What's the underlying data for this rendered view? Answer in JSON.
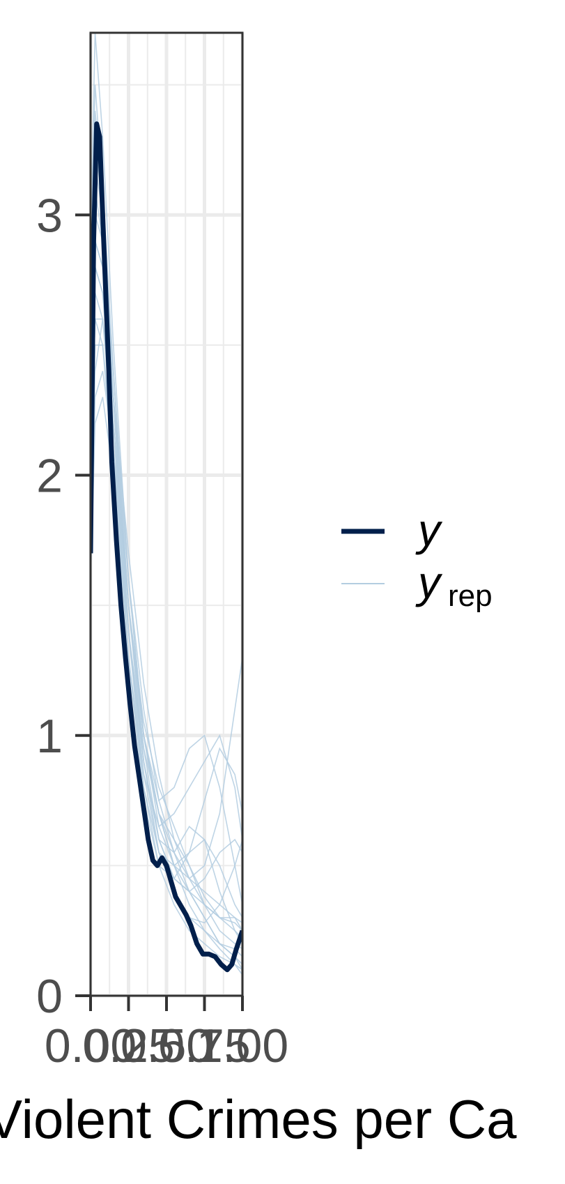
{
  "chart_data": {
    "type": "line",
    "title": "",
    "xlabel": "Violent Crimes per Ca",
    "ylabel": "",
    "xlim": [
      0,
      1
    ],
    "ylim": [
      0,
      3.7
    ],
    "x_ticks": [
      "0.00",
      "0.25",
      "0.50",
      "0.75",
      "1.00"
    ],
    "y_ticks": [
      "0",
      "1",
      "2",
      "3"
    ],
    "grid": true,
    "legend_position": "right",
    "legend": [
      {
        "label": "y",
        "subscript": "",
        "color": "#011f4b"
      },
      {
        "label": "y",
        "subscript": "rep",
        "color": "#b3cde0"
      }
    ],
    "series": [
      {
        "name": "y",
        "color": "#011f4b",
        "x": [
          0.0,
          0.02,
          0.04,
          0.06,
          0.08,
          0.1,
          0.12,
          0.14,
          0.17,
          0.2,
          0.23,
          0.26,
          0.29,
          0.32,
          0.35,
          0.38,
          0.41,
          0.44,
          0.47,
          0.5,
          0.53,
          0.56,
          0.6,
          0.63,
          0.66,
          0.7,
          0.74,
          0.78,
          0.82,
          0.86,
          0.9,
          0.93,
          0.96,
          1.0
        ],
        "y": [
          1.7,
          2.9,
          3.35,
          3.3,
          3.0,
          2.7,
          2.4,
          2.05,
          1.75,
          1.5,
          1.3,
          1.12,
          0.96,
          0.84,
          0.72,
          0.6,
          0.52,
          0.5,
          0.53,
          0.5,
          0.44,
          0.38,
          0.34,
          0.31,
          0.27,
          0.2,
          0.16,
          0.16,
          0.15,
          0.12,
          0.1,
          0.12,
          0.18,
          0.25
        ]
      }
    ],
    "replicates": [
      {
        "x": [
          0,
          0.03,
          0.08,
          0.15,
          0.25,
          0.35,
          0.45,
          0.55,
          0.65,
          0.75,
          0.85,
          0.95,
          1.0
        ],
        "y": [
          2.9,
          3.7,
          3.3,
          2.5,
          1.6,
          1.0,
          0.7,
          0.5,
          0.4,
          0.3,
          0.2,
          0.15,
          0.12
        ]
      },
      {
        "x": [
          0,
          0.03,
          0.08,
          0.15,
          0.25,
          0.35,
          0.45,
          0.55,
          0.65,
          0.75,
          0.85,
          0.95,
          1.0
        ],
        "y": [
          2.5,
          3.2,
          3.0,
          2.3,
          1.4,
          0.9,
          0.6,
          0.55,
          0.65,
          0.6,
          0.4,
          0.25,
          0.2
        ]
      },
      {
        "x": [
          0,
          0.03,
          0.08,
          0.15,
          0.25,
          0.35,
          0.45,
          0.55,
          0.65,
          0.75,
          0.85,
          0.95,
          1.0
        ],
        "y": [
          2.2,
          2.8,
          2.7,
          2.2,
          1.5,
          1.0,
          0.7,
          0.6,
          0.5,
          0.35,
          0.25,
          0.2,
          0.18
        ]
      },
      {
        "x": [
          0,
          0.03,
          0.08,
          0.15,
          0.25,
          0.35,
          0.45,
          0.55,
          0.65,
          0.75,
          0.85,
          0.95,
          1.0
        ],
        "y": [
          2.0,
          2.6,
          2.5,
          2.0,
          1.3,
          0.85,
          0.65,
          0.7,
          0.8,
          0.9,
          1.0,
          0.8,
          0.6
        ]
      },
      {
        "x": [
          0,
          0.03,
          0.08,
          0.15,
          0.25,
          0.35,
          0.45,
          0.55,
          0.65,
          0.75,
          0.85,
          0.95,
          1.0
        ],
        "y": [
          2.7,
          3.4,
          3.1,
          2.4,
          1.5,
          0.9,
          0.55,
          0.4,
          0.3,
          0.25,
          0.2,
          0.18,
          0.15
        ]
      },
      {
        "x": [
          0,
          0.03,
          0.08,
          0.15,
          0.25,
          0.35,
          0.45,
          0.55,
          0.65,
          0.75,
          0.85,
          0.95,
          1.0
        ],
        "y": [
          1.8,
          2.4,
          2.6,
          2.3,
          1.7,
          1.2,
          0.85,
          0.6,
          0.45,
          0.35,
          0.3,
          0.28,
          0.25
        ]
      },
      {
        "x": [
          0,
          0.03,
          0.08,
          0.15,
          0.25,
          0.35,
          0.45,
          0.55,
          0.65,
          0.75,
          0.85,
          0.95,
          1.0
        ],
        "y": [
          2.4,
          3.0,
          2.9,
          2.4,
          1.6,
          1.0,
          0.65,
          0.5,
          0.45,
          0.5,
          0.7,
          1.1,
          1.3
        ]
      },
      {
        "x": [
          0,
          0.03,
          0.08,
          0.15,
          0.25,
          0.35,
          0.45,
          0.55,
          0.65,
          0.75,
          0.85,
          0.95,
          1.0
        ],
        "y": [
          2.1,
          2.7,
          2.6,
          2.1,
          1.3,
          0.8,
          0.55,
          0.5,
          0.55,
          0.6,
          0.5,
          0.35,
          0.3
        ]
      },
      {
        "x": [
          0,
          0.03,
          0.08,
          0.15,
          0.25,
          0.35,
          0.45,
          0.55,
          0.65,
          0.75,
          0.85,
          0.95,
          1.0
        ],
        "y": [
          2.6,
          3.3,
          3.0,
          2.2,
          1.3,
          0.75,
          0.5,
          0.45,
          0.55,
          0.75,
          0.95,
          0.85,
          0.7
        ]
      },
      {
        "x": [
          0,
          0.03,
          0.08,
          0.15,
          0.25,
          0.35,
          0.45,
          0.55,
          0.65,
          0.75,
          0.85,
          0.95,
          1.0
        ],
        "y": [
          1.9,
          2.5,
          2.5,
          2.1,
          1.4,
          0.95,
          0.7,
          0.55,
          0.4,
          0.3,
          0.2,
          0.15,
          0.1
        ]
      },
      {
        "x": [
          0,
          0.03,
          0.08,
          0.15,
          0.25,
          0.35,
          0.45,
          0.55,
          0.65,
          0.75,
          0.85,
          0.95,
          1.0
        ],
        "y": [
          2.3,
          2.9,
          2.8,
          2.3,
          1.5,
          1.0,
          0.75,
          0.8,
          0.95,
          1.0,
          0.8,
          0.5,
          0.35
        ]
      },
      {
        "x": [
          0,
          0.03,
          0.08,
          0.15,
          0.25,
          0.35,
          0.45,
          0.55,
          0.65,
          0.75,
          0.85,
          0.95,
          1.0
        ],
        "y": [
          2.8,
          3.5,
          3.1,
          2.3,
          1.4,
          0.8,
          0.5,
          0.35,
          0.25,
          0.2,
          0.15,
          0.12,
          0.1
        ]
      },
      {
        "x": [
          0,
          0.03,
          0.08,
          0.15,
          0.25,
          0.35,
          0.45,
          0.55,
          0.65,
          0.75,
          0.85,
          0.95,
          1.0
        ],
        "y": [
          1.6,
          2.2,
          2.3,
          2.0,
          1.4,
          0.9,
          0.6,
          0.45,
          0.4,
          0.45,
          0.55,
          0.6,
          0.55
        ]
      },
      {
        "x": [
          0,
          0.03,
          0.08,
          0.15,
          0.25,
          0.35,
          0.45,
          0.55,
          0.65,
          0.75,
          0.85,
          0.95,
          1.0
        ],
        "y": [
          2.2,
          2.8,
          2.7,
          2.2,
          1.4,
          0.85,
          0.55,
          0.4,
          0.3,
          0.28,
          0.35,
          0.5,
          0.6
        ]
      },
      {
        "x": [
          0,
          0.03,
          0.08,
          0.15,
          0.25,
          0.35,
          0.45,
          0.55,
          0.65,
          0.75,
          0.85,
          0.95,
          1.0
        ],
        "y": [
          2.0,
          2.6,
          2.6,
          2.2,
          1.5,
          1.05,
          0.8,
          0.65,
          0.5,
          0.38,
          0.3,
          0.25,
          0.22
        ]
      },
      {
        "x": [
          0,
          0.03,
          0.08,
          0.15,
          0.25,
          0.35,
          0.45,
          0.55,
          0.65,
          0.75,
          0.85,
          0.95,
          1.0
        ],
        "y": [
          2.5,
          3.1,
          2.9,
          2.3,
          1.5,
          0.95,
          0.6,
          0.45,
          0.4,
          0.35,
          0.3,
          0.3,
          0.28
        ]
      },
      {
        "x": [
          0,
          0.03,
          0.08,
          0.15,
          0.25,
          0.35,
          0.45,
          0.55,
          0.65,
          0.75,
          0.85,
          0.95,
          1.0
        ],
        "y": [
          1.7,
          2.3,
          2.4,
          2.1,
          1.5,
          1.0,
          0.7,
          0.5,
          0.35,
          0.25,
          0.18,
          0.12,
          0.08
        ]
      },
      {
        "x": [
          0,
          0.03,
          0.08,
          0.15,
          0.25,
          0.35,
          0.45,
          0.55,
          0.65,
          0.75,
          0.85,
          0.95,
          1.0
        ],
        "y": [
          2.3,
          2.9,
          2.8,
          2.3,
          1.6,
          1.1,
          0.75,
          0.55,
          0.45,
          0.4,
          0.35,
          0.3,
          0.25
        ]
      }
    ]
  }
}
